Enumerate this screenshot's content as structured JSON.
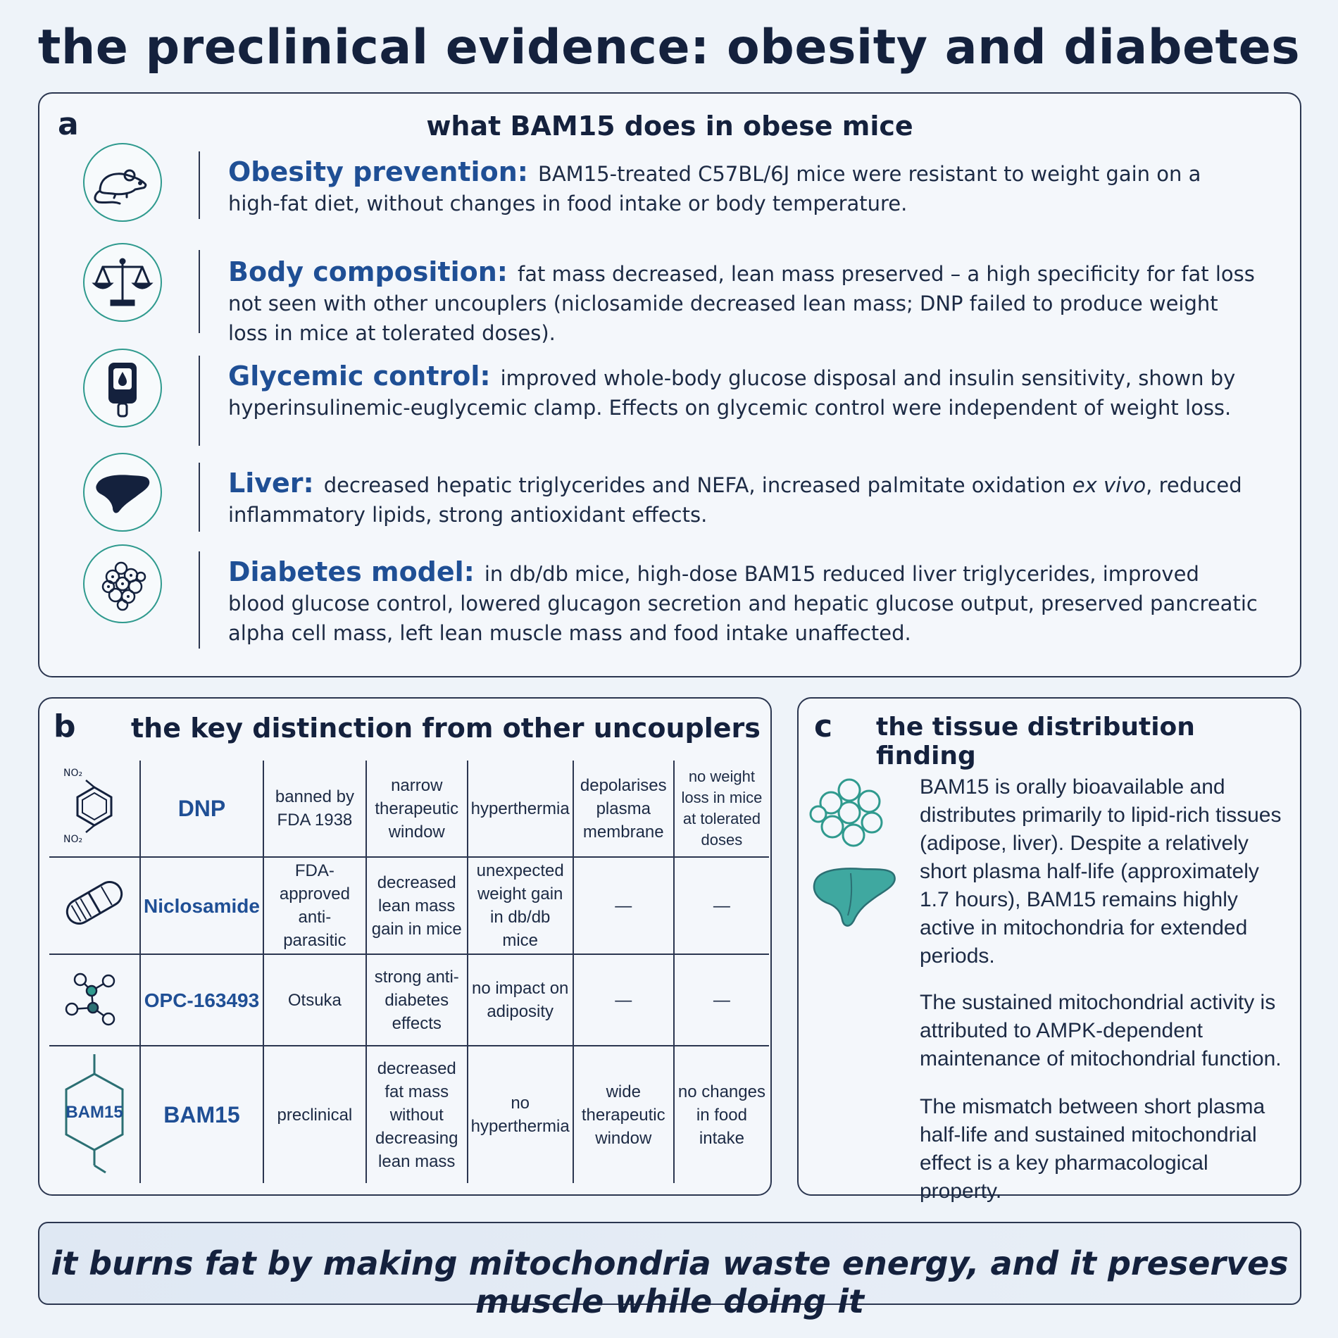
{
  "title": "the preclinical evidence: obesity and diabetes",
  "panel_a": {
    "letter": "a",
    "heading": "what BAM15 does in obese mice",
    "findings": [
      {
        "icon": "mouse-icon",
        "label": "Obesity prevention:",
        "text": "BAM15-treated C57BL/6J mice were resistant to weight gain on a high-fat diet, without changes in food intake or body temperature."
      },
      {
        "icon": "scale-icon",
        "label": "Body composition:",
        "text": "fat mass decreased, lean mass preserved – a high specificity for fat loss not seen with other uncouplers (niclosamide decreased lean mass; DNP failed to produce weight loss in mice at tolerated doses)."
      },
      {
        "icon": "glucose-meter-icon",
        "label": "Glycemic control:",
        "text": "improved whole-body glucose disposal and insulin sensitivity, shown by hyperinsulinemic-euglycemic clamp. Effects on glycemic control were independent of weight loss."
      },
      {
        "icon": "liver-icon",
        "label": "Liver:",
        "text_before": "decreased hepatic triglycerides and NEFA, increased palmitate oxidation ",
        "text_italic": "ex vivo",
        "text_after": ", reduced inflammatory lipids, strong antioxidant effects."
      },
      {
        "icon": "islet-cells-icon",
        "label": "Diabetes model:",
        "text": "in db/db mice, high-dose BAM15 reduced liver triglycerides, improved blood glucose control, lowered glucagon secretion and hepatic glucose output, preserved pancreatic alpha cell mass, left lean muscle mass and food intake unaffected."
      }
    ]
  },
  "panel_b": {
    "letter": "b",
    "heading": "the key distinction from other uncouplers",
    "rows": [
      {
        "icon": "dnp-structure-icon",
        "icon_labels": [
          "NO₂",
          "NO₂"
        ],
        "name": "DNP",
        "cells": [
          "banned by FDA 1938",
          "narrow therapeutic window",
          "hyperthermia",
          "depolarises plasma membrane",
          "no weight loss in mice at tolerated doses"
        ]
      },
      {
        "icon": "pill-capsule-icon",
        "name": "Niclosamide",
        "cells": [
          "FDA-approved anti-parasitic",
          "decreased lean mass gain in mice",
          "unexpected weight gain in db/db mice",
          "—",
          "—"
        ]
      },
      {
        "icon": "molecule-icon",
        "name": "OPC-163493",
        "cells": [
          "Otsuka",
          "strong anti-diabetes effects",
          "no impact on adiposity",
          "—",
          "—"
        ]
      },
      {
        "icon": "bam15-structure-icon",
        "icon_label": "BAM15",
        "name": "BAM15",
        "cells": [
          "preclinical",
          "decreased fat mass without decreasing lean mass",
          "no hyperthermia",
          "wide therapeutic window",
          "no changes in food intake"
        ]
      }
    ]
  },
  "panel_c": {
    "letter": "c",
    "heading": "the tissue distribution finding",
    "paragraphs": [
      "BAM15 is orally bioavailable and distributes primarily to lipid-rich tissues (adipose, liver). Despite a relatively short plasma half-life (approximately 1.7 hours), BAM15 remains highly active in mitochondria for extended periods.",
      "The sustained mitochondrial activity is attributed to AMPK-dependent maintenance of mitochondrial function.",
      "The mismatch between short plasma half-life and sustained mitochondrial effect is a key pharmacological property."
    ],
    "icons": [
      "adipose-cells-icon",
      "liver-icon"
    ]
  },
  "banner": {
    "text": "it burns fat by making mitochondria waste energy, and it preserves muscle while doing it"
  },
  "colors": {
    "navy": "#14213d",
    "label_blue": "#1f4f95",
    "teal": "#2f9a8e",
    "teal_fill": "#3fa8a0",
    "background": "#eef3f9"
  }
}
